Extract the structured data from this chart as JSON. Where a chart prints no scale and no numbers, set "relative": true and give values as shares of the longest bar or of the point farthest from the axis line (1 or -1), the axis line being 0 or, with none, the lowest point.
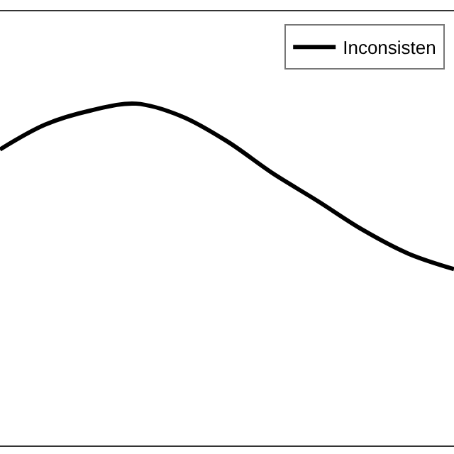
{
  "chart_data": {
    "type": "line",
    "relative": true,
    "categories": [
      null,
      null,
      null,
      null,
      null,
      null,
      null,
      null,
      null,
      null,
      null
    ],
    "series": [
      {
        "name": "Inconsisten",
        "color": "#000000",
        "values": [
          0.866,
          0.939,
          0.98,
          1.0,
          0.963,
          0.89,
          0.797,
          0.715,
          0.63,
          0.561,
          0.516
        ]
      }
    ],
    "legend": "top right"
  }
}
